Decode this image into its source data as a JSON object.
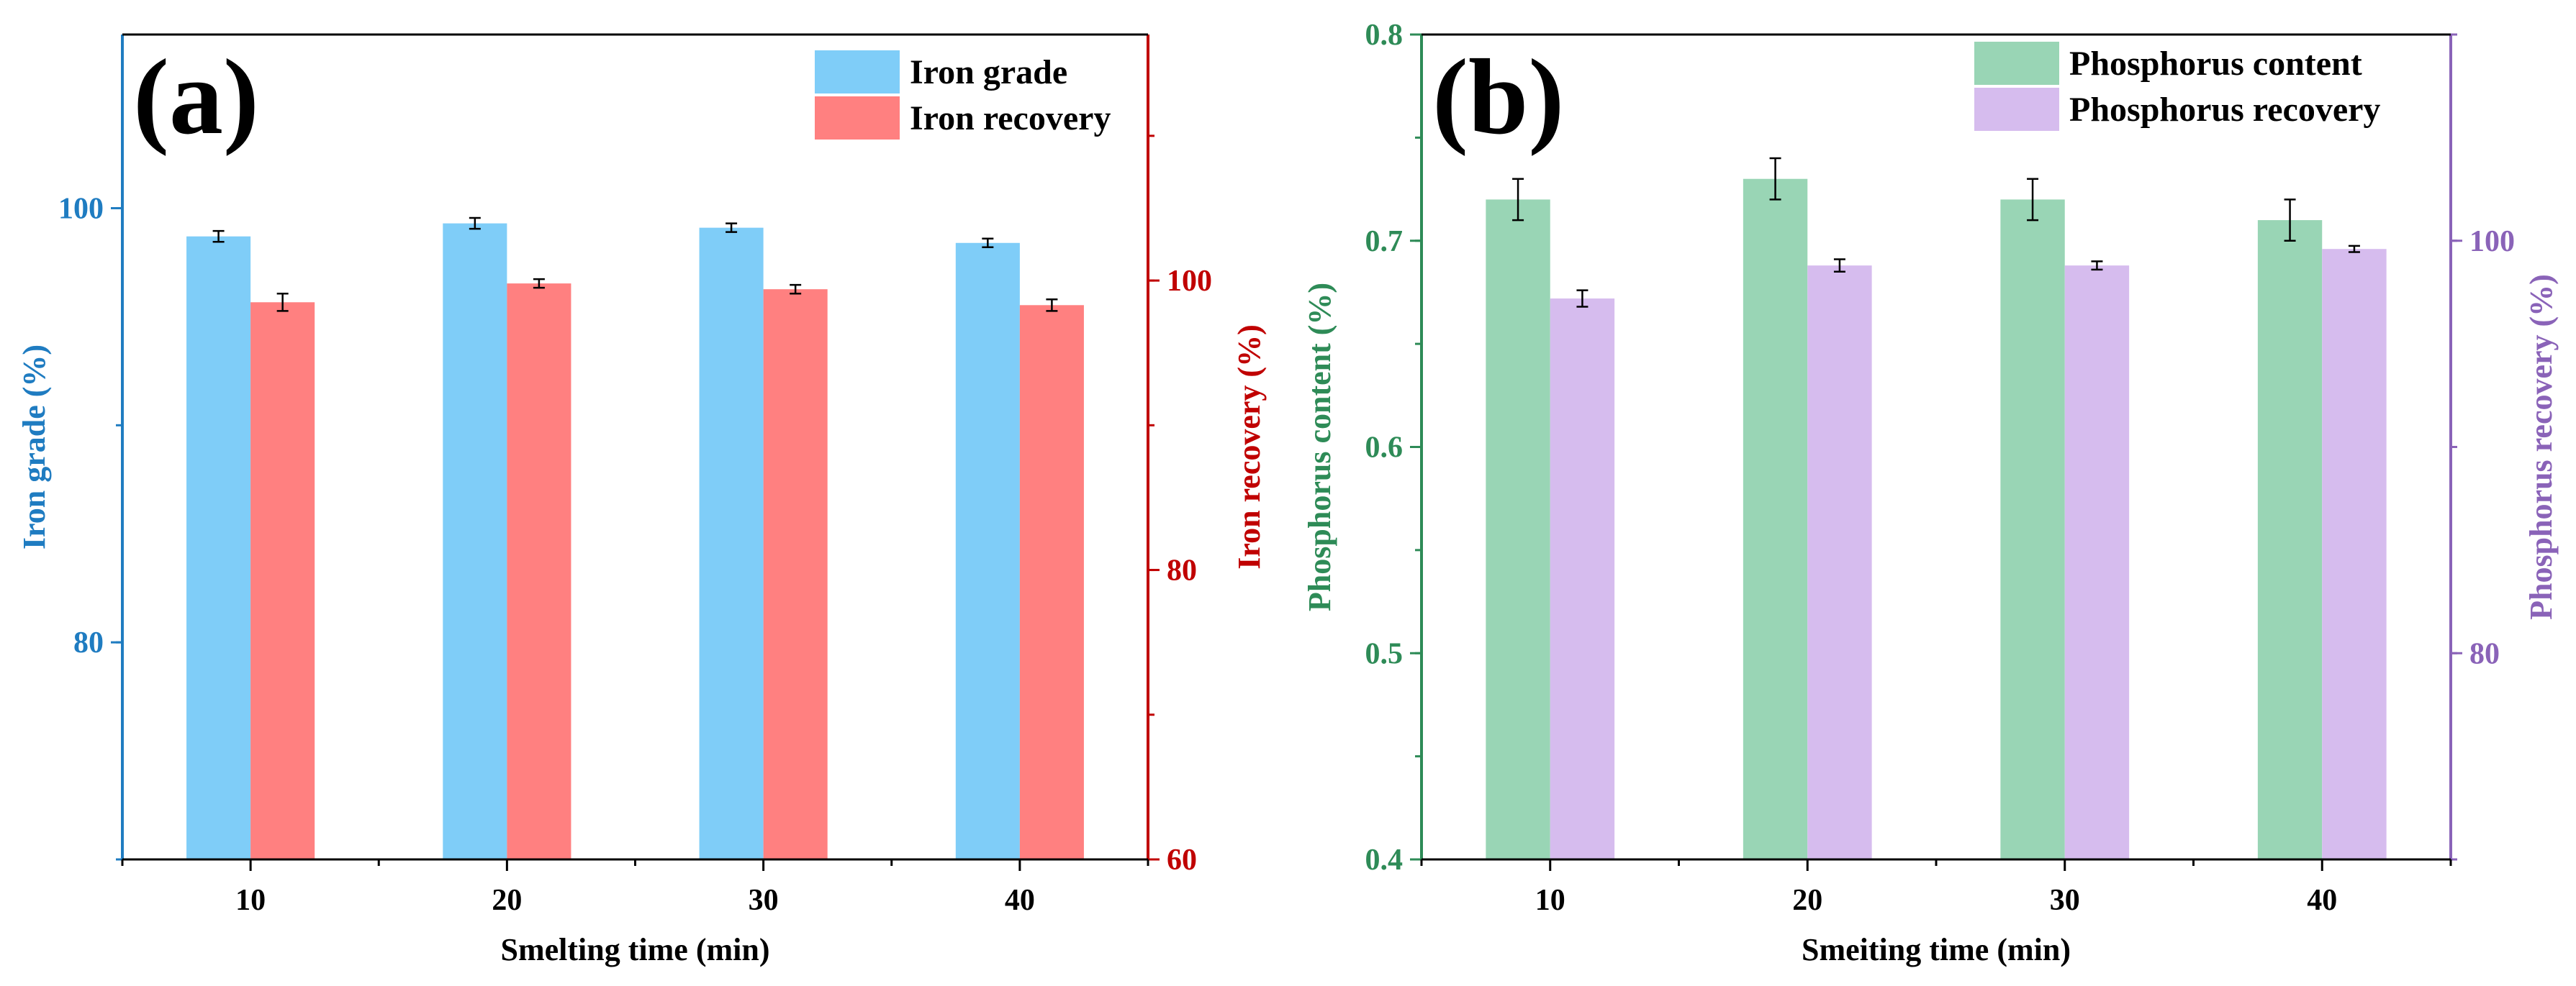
{
  "colors": {
    "iron_grade": "#7fcdf8",
    "iron_recovery": "#ff8080",
    "phos_content": "#99d5b5",
    "phos_recovery": "#d6bcee",
    "axis_left_a": "#1f7cc1",
    "axis_right_a": "#c00000",
    "axis_left_b": "#2e8b57",
    "axis_right_b": "#8a63b8",
    "axis_black": "#000000"
  },
  "chart_data": [
    {
      "type": "bar",
      "panel_label": "(a)",
      "xlabel": "Smelting time (min)",
      "ylabel_left": "Iron grade (%)",
      "ylabel_right": "Iron recovery (%)",
      "categories": [
        "10",
        "20",
        "30",
        "40"
      ],
      "ylim_left": [
        70,
        108
      ],
      "yticks_left": [
        80,
        100
      ],
      "ylim_right": [
        60,
        117
      ],
      "yticks_right": [
        60,
        80,
        100
      ],
      "legend_position": "top-right",
      "series": [
        {
          "name": "Iron grade",
          "axis": "left",
          "color_key": "iron_grade",
          "values": [
            98.7,
            99.3,
            99.1,
            98.4
          ],
          "errors": [
            0.25,
            0.25,
            0.2,
            0.2
          ]
        },
        {
          "name": "Iron recovery",
          "axis": "right",
          "color_key": "iron_recovery",
          "values": [
            98.5,
            99.8,
            99.4,
            98.3
          ],
          "errors": [
            0.6,
            0.3,
            0.3,
            0.4
          ]
        }
      ]
    },
    {
      "type": "bar",
      "panel_label": "(b)",
      "xlabel": "Smeiting time (min)",
      "ylabel_left": "Phosphorus content (%)",
      "ylabel_right": "Phosphorus recovery (%)",
      "categories": [
        "10",
        "20",
        "30",
        "40"
      ],
      "ylim_left": [
        0.4,
        0.8
      ],
      "yticks_left": [
        0.4,
        0.5,
        0.6,
        0.7,
        0.8
      ],
      "ylim_right": [
        70,
        110
      ],
      "yticks_right": [
        80,
        100
      ],
      "legend_position": "top-right",
      "series": [
        {
          "name": "Phosphorus content",
          "axis": "left",
          "color_key": "phos_content",
          "values": [
            0.72,
            0.73,
            0.72,
            0.71
          ],
          "errors": [
            0.01,
            0.01,
            0.01,
            0.01
          ]
        },
        {
          "name": "Phosphorus recovery",
          "axis": "right",
          "color_key": "phos_recovery",
          "values": [
            97.2,
            98.8,
            98.8,
            99.6
          ],
          "errors": [
            0.4,
            0.3,
            0.2,
            0.15
          ]
        }
      ]
    }
  ]
}
